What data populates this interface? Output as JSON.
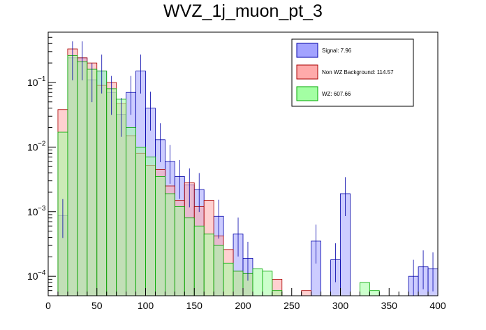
{
  "chart_data": {
    "type": "bar",
    "title": "WVZ_1j_muon_pt_3",
    "xlabel": "",
    "ylabel": "",
    "x_range": [
      0,
      400
    ],
    "y_range": [
      5e-05,
      0.6
    ],
    "y_scale": "log",
    "bin_width": 10,
    "bins_start": [
      10,
      20,
      30,
      40,
      50,
      60,
      70,
      80,
      90,
      100,
      110,
      120,
      130,
      140,
      150,
      160,
      170,
      180,
      190,
      200,
      210,
      220,
      230,
      240,
      250,
      260,
      270,
      280,
      290,
      300,
      310,
      320,
      330,
      340,
      350,
      360,
      370,
      380,
      390
    ],
    "x_ticks": [
      0,
      50,
      100,
      150,
      200,
      250,
      300,
      350,
      400
    ],
    "y_ticks": [
      {
        "value": 0.0001,
        "label": "10"
      },
      {
        "value": 0.001,
        "label": "10"
      },
      {
        "value": 0.01,
        "label": "10"
      },
      {
        "value": 0.1,
        "label": "10"
      }
    ],
    "y_tick_exponents": [
      "−4",
      "−3",
      "−2",
      "−1"
    ],
    "series": [
      {
        "name": "Signal: 7.96",
        "color": "#a3a3ff",
        "edge": "#0000aa",
        "values": [
          0.00087,
          0.24,
          0.24,
          0.11,
          0.15,
          0.07,
          0.032,
          0.07,
          0.15,
          0.04,
          0.013,
          0.006,
          0.0035,
          0.0026,
          0.0022,
          0,
          0.00085,
          0,
          0.00045,
          0.00019,
          0,
          0,
          0,
          0,
          0,
          0,
          0.00035,
          0,
          0.00018,
          0.0019,
          0,
          0,
          0,
          0,
          0,
          0,
          0.0001,
          0.00014,
          0.00013
        ]
      },
      {
        "name": "Non WZ Background: 114.57",
        "color": "#ffaaaa",
        "edge": "#aa0000",
        "values": [
          0.038,
          0.33,
          0.24,
          0.2,
          0.09,
          0.1,
          0.047,
          0.015,
          0.008,
          0.0052,
          0.0045,
          0.0025,
          0.0015,
          0.0028,
          0.0012,
          0.0015,
          0.00042,
          0.00026,
          0.00012,
          0.00011,
          0,
          0,
          9e-05,
          0,
          0,
          6e-05,
          5e-05,
          0,
          5e-05,
          4e-05,
          0,
          0,
          0,
          0,
          0,
          0,
          0,
          0,
          0
        ]
      },
      {
        "name": "WZ: 607.66",
        "color": "#a3ffa3",
        "edge": "#00aa00",
        "values": [
          0.017,
          0.26,
          0.21,
          0.16,
          0.15,
          0.08,
          0.055,
          0.02,
          0.01,
          0.007,
          0.0035,
          0.0019,
          0.0012,
          0.0008,
          0.0006,
          0.00045,
          0.0003,
          0.00016,
          0.00012,
          0.00011,
          0.00013,
          0.00012,
          6e-05,
          0,
          5e-05,
          0,
          0,
          0,
          0,
          0,
          0,
          8e-05,
          6e-05,
          0,
          0,
          0,
          0,
          0,
          0
        ]
      }
    ],
    "legend_position": "top-right",
    "grid": false
  }
}
